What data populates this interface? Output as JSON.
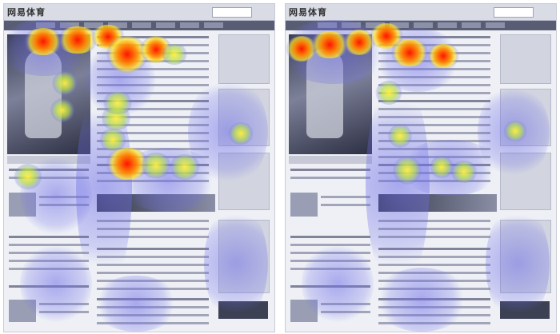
{
  "panels": [
    {
      "logo_text": "网易体育"
    },
    {
      "logo_text": "网易体育"
    }
  ]
}
